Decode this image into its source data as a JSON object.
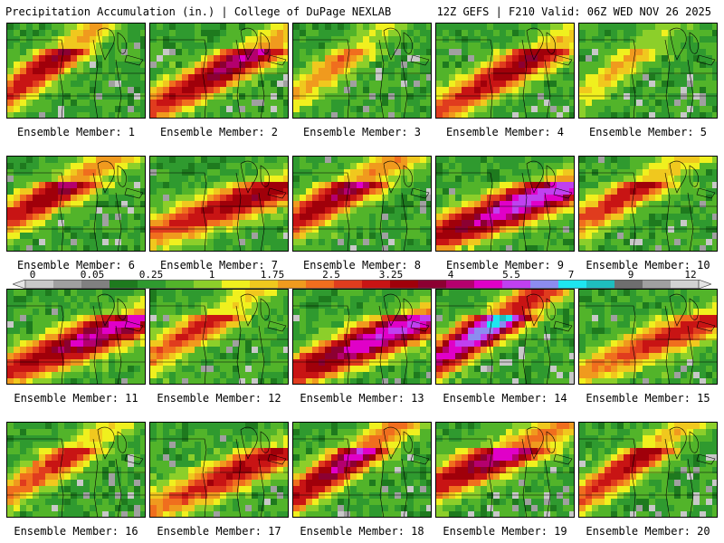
{
  "header": {
    "left": "Precipitation Accumulation (in.) | College of DuPage NEXLAB",
    "right": "12Z GEFS | F210 Valid: 06Z WED NOV 26 2025"
  },
  "colorbar": {
    "tick_labels": [
      "0",
      "0.05",
      "0.25",
      "1",
      "1.75",
      "2.5",
      "3.25",
      "4",
      "5.5",
      "7",
      "9",
      "12"
    ],
    "colors": [
      "#c8c8c8",
      "#a0a0a0",
      "#808080",
      "#1e7a1e",
      "#2f9a2f",
      "#52b42a",
      "#8ccf2a",
      "#f0f01e",
      "#f0c81e",
      "#f09a1e",
      "#f06e1e",
      "#e03c1e",
      "#c81414",
      "#a0000a",
      "#8c0032",
      "#b4006e",
      "#e000c8",
      "#c040f0",
      "#8c8cf0",
      "#1ee6f0",
      "#1ebebe",
      "#6e6e6e",
      "#a0a0a0",
      "#d2d2d2"
    ]
  },
  "panels": [
    {
      "label": "Ensemble Member: 1",
      "max": 3.5
    },
    {
      "label": "Ensemble Member: 2",
      "max": 3.3
    },
    {
      "label": "Ensemble Member: 3",
      "max": 1.8
    },
    {
      "label": "Ensemble Member: 4",
      "max": 2.8
    },
    {
      "label": "Ensemble Member: 5",
      "max": 1.4
    },
    {
      "label": "Ensemble Member: 6",
      "max": 3.6
    },
    {
      "label": "Ensemble Member: 7",
      "max": 2.6
    },
    {
      "label": "Ensemble Member: 8",
      "max": 3.8
    },
    {
      "label": "Ensemble Member: 9",
      "max": 4.2
    },
    {
      "label": "Ensemble Member: 10",
      "max": 2.7
    },
    {
      "label": "Ensemble Member: 11",
      "max": 3.5
    },
    {
      "label": "Ensemble Member: 12",
      "max": 2.4
    },
    {
      "label": "Ensemble Member: 13",
      "max": 4.0
    },
    {
      "label": "Ensemble Member: 14",
      "max": 5.8
    },
    {
      "label": "Ensemble Member: 15",
      "max": 2.0
    },
    {
      "label": "Ensemble Member: 16",
      "max": 2.4
    },
    {
      "label": "Ensemble Member: 17",
      "max": 2.3
    },
    {
      "label": "Ensemble Member: 18",
      "max": 4.1
    },
    {
      "label": "Ensemble Member: 19",
      "max": 3.9
    },
    {
      "label": "Ensemble Member: 20",
      "max": 2.9
    }
  ]
}
